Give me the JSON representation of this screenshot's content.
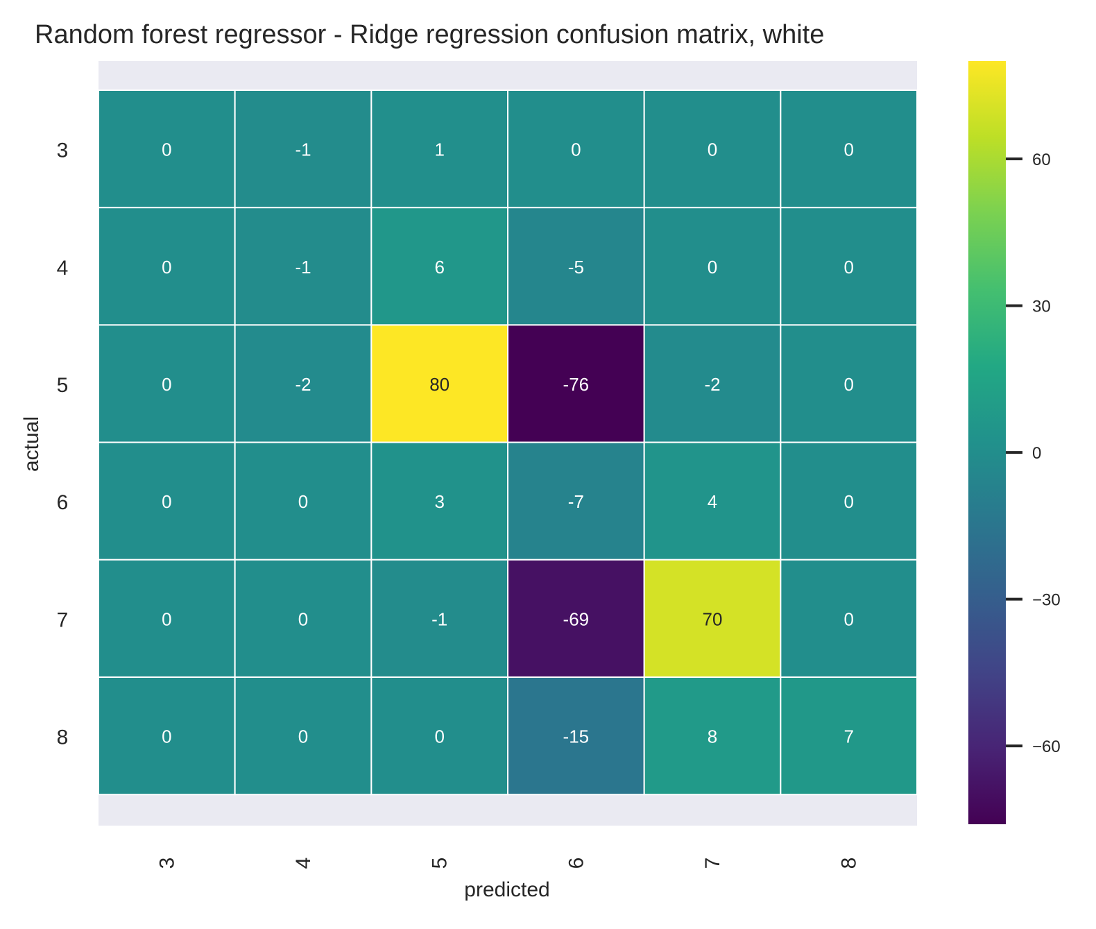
{
  "chart_data": {
    "type": "heatmap",
    "title": "Random forest regressor - Ridge regression confusion matrix, white",
    "xlabel": "predicted",
    "ylabel": "actual",
    "x_categories": [
      "3",
      "4",
      "5",
      "6",
      "7",
      "8"
    ],
    "y_categories": [
      "3",
      "4",
      "5",
      "6",
      "7",
      "8"
    ],
    "values": [
      [
        0,
        -1,
        1,
        0,
        0,
        0
      ],
      [
        0,
        -1,
        6,
        -5,
        0,
        0
      ],
      [
        0,
        -2,
        80,
        -76,
        -2,
        0
      ],
      [
        0,
        0,
        3,
        -7,
        4,
        0
      ],
      [
        0,
        0,
        -1,
        -69,
        70,
        0
      ],
      [
        0,
        0,
        0,
        -15,
        8,
        7
      ]
    ],
    "colormap": "viridis",
    "value_range": [
      -76,
      80
    ],
    "colorbar": {
      "ticks": [
        60,
        30,
        0,
        -30,
        -60
      ],
      "tick_labels": [
        "60",
        "30",
        "0",
        "−30",
        "−60"
      ]
    },
    "grid": true,
    "colors": {
      "background": "#ffffff",
      "axes_face": "#eaeaf2",
      "cell_border": "#ffffff"
    }
  }
}
